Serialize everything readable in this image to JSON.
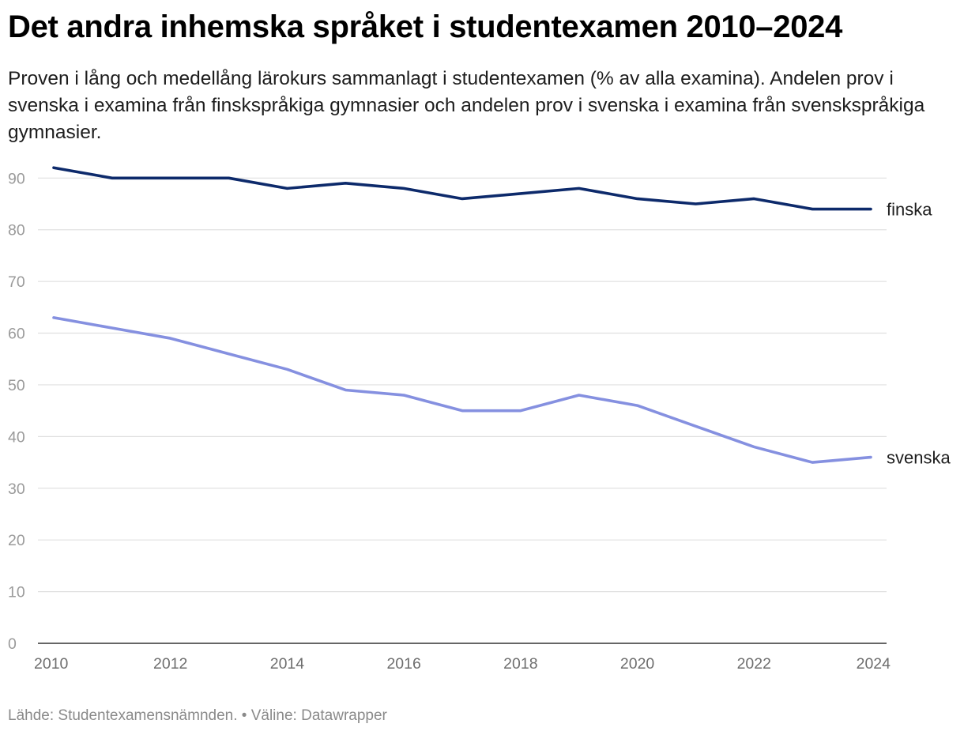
{
  "title": "Det andra inhemska språket i studentexamen 2010–2024",
  "subtitle": "Proven i lång och medellång lärokurs sammanlagt i studentexamen (% av alla examina). Andelen prov i svenska i examina från finskspråkiga gymnasier och andelen prov i svenska i examina från svenskspråkiga gymnasier.",
  "footer": {
    "source": "Lähde: Studentexamensnämnden.",
    "separator": " • ",
    "tool": "Väline: Datawrapper"
  },
  "chart_data": {
    "type": "line",
    "title": "Det andra inhemska språket i studentexamen 2010–2024",
    "xlabel": "",
    "ylabel": "",
    "x": [
      2010,
      2011,
      2012,
      2013,
      2014,
      2015,
      2016,
      2017,
      2018,
      2019,
      2020,
      2021,
      2022,
      2023,
      2024
    ],
    "x_ticks": [
      "2010",
      "2012",
      "2014",
      "2016",
      "2018",
      "2020",
      "2022",
      "2024"
    ],
    "y_ticks": [
      "0",
      "10",
      "20",
      "30",
      "40",
      "50",
      "60",
      "70",
      "80",
      "90"
    ],
    "ylim": [
      0,
      95
    ],
    "xlim": [
      2010,
      2024
    ],
    "grid": true,
    "legend": "direct labels at line ends",
    "series": [
      {
        "name": "finska",
        "color": "#0d2a6b",
        "values": [
          92,
          90,
          90,
          90,
          88,
          89,
          88,
          86,
          87,
          88,
          86,
          85,
          86,
          84,
          84
        ]
      },
      {
        "name": "svenska",
        "color": "#8590e0",
        "values": [
          63,
          61,
          59,
          56,
          53,
          49,
          48,
          45,
          45,
          48,
          46,
          42,
          38,
          35,
          36
        ]
      }
    ]
  }
}
